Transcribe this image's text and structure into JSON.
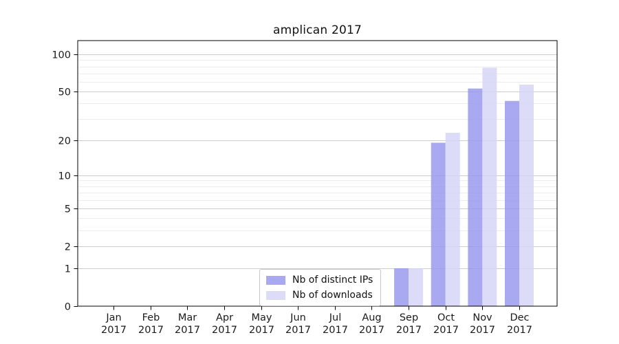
{
  "chart_data": {
    "type": "bar",
    "title": "amplican 2017",
    "categories": [
      "Jan",
      "Feb",
      "Mar",
      "Apr",
      "May",
      "Jun",
      "Jul",
      "Aug",
      "Sep",
      "Oct",
      "Nov",
      "Dec"
    ],
    "category_year": "2017",
    "series": [
      {
        "name": "Nb of distinct IPs",
        "color": "#9696ef",
        "values": [
          0,
          0,
          0,
          0,
          0,
          0,
          0,
          0,
          1,
          19,
          53,
          42
        ]
      },
      {
        "name": "Nb of downloads",
        "color": "#d4d4f8",
        "values": [
          0,
          0,
          0,
          0,
          0,
          0,
          0,
          0,
          1,
          23,
          78,
          57
        ]
      }
    ],
    "bar_opacity": 0.82,
    "xlabel": "",
    "ylabel": "",
    "y_scale": "log1p",
    "ylim": [
      0,
      130
    ],
    "y_ticks": [
      0,
      1,
      2,
      5,
      10,
      20,
      50,
      100
    ],
    "y_minor_ticks": [
      3,
      4,
      6,
      7,
      8,
      9,
      30,
      40,
      60,
      70,
      80,
      90
    ],
    "grid": true,
    "legend_position": "bottom-center"
  },
  "colors": {
    "grid_major": "#cccccc",
    "grid_minor": "#ececec",
    "spine": "#000000",
    "tick_text": "#1a1a1a",
    "background": "#ffffff"
  }
}
